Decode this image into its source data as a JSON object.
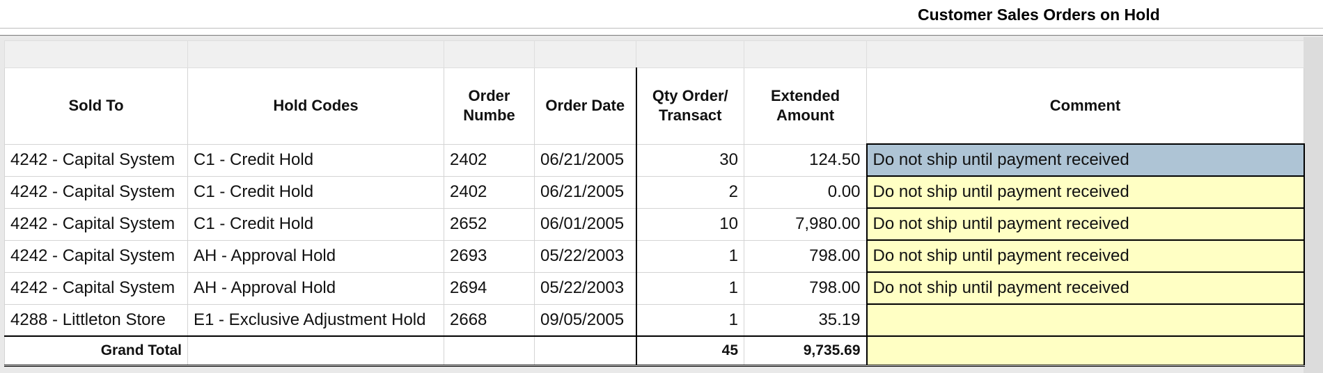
{
  "report": {
    "title": "Customer Sales Orders on Hold"
  },
  "columns": [
    {
      "key": "sold_to",
      "label": "Sold To"
    },
    {
      "key": "hold_codes",
      "label": "Hold Codes"
    },
    {
      "key": "order_number",
      "label": "Order Numbe"
    },
    {
      "key": "order_date",
      "label": "Order Date"
    },
    {
      "key": "qty",
      "label": "Qty Order/ Transact"
    },
    {
      "key": "extended_amount",
      "label": "Extended Amount"
    },
    {
      "key": "comment",
      "label": "Comment"
    }
  ],
  "rows": [
    {
      "sold_to": "4242 - Capital System",
      "hold_codes": "C1 - Credit Hold",
      "order_number": "2402",
      "order_date": "06/21/2005",
      "qty": "30",
      "extended_amount": "124.50",
      "comment": "Do not ship until payment received"
    },
    {
      "sold_to": "4242 - Capital System",
      "hold_codes": "C1 - Credit Hold",
      "order_number": "2402",
      "order_date": "06/21/2005",
      "qty": "2",
      "extended_amount": "0.00",
      "comment": "Do not ship until payment received"
    },
    {
      "sold_to": "4242 - Capital System",
      "hold_codes": "C1 - Credit Hold",
      "order_number": "2652",
      "order_date": "06/01/2005",
      "qty": "10",
      "extended_amount": "7,980.00",
      "comment": "Do not ship until payment received"
    },
    {
      "sold_to": "4242 - Capital System",
      "hold_codes": "AH - Approval Hold",
      "order_number": "2693",
      "order_date": "05/22/2003",
      "qty": "1",
      "extended_amount": "798.00",
      "comment": "Do not ship until payment received"
    },
    {
      "sold_to": "4242 - Capital System",
      "hold_codes": "AH - Approval Hold",
      "order_number": "2694",
      "order_date": "05/22/2003",
      "qty": "1",
      "extended_amount": "798.00",
      "comment": "Do not ship until payment received"
    },
    {
      "sold_to": "4288 - Littleton Store",
      "hold_codes": "E1 - Exclusive Adjustment Hold",
      "order_number": "2668",
      "order_date": "09/05/2005",
      "qty": "1",
      "extended_amount": "35.19",
      "comment": ""
    }
  ],
  "totals": {
    "label": "Grand Total",
    "qty": "45",
    "extended_amount": "9,735.69"
  },
  "colors": {
    "comment_bg": "#ffffc4",
    "selected_bg": "#aec4d5"
  }
}
